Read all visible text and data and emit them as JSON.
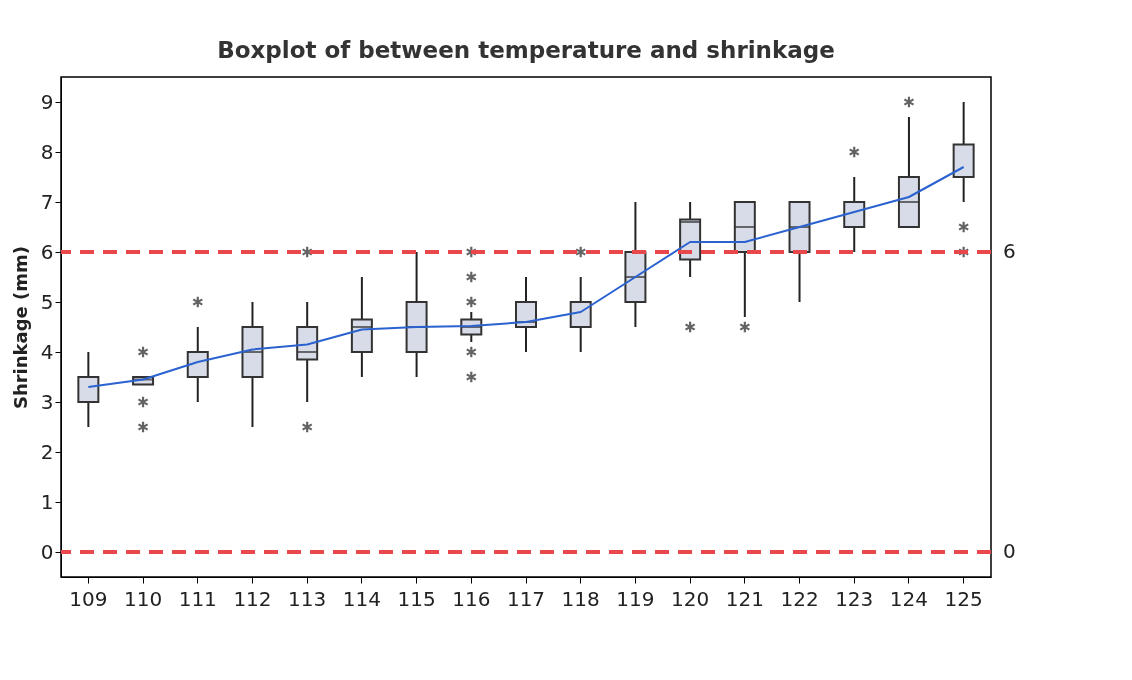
{
  "chart_data": {
    "type": "box",
    "title": "Boxplot of between temperature and shrinkage",
    "ylabel": "Shrinkage (mm)",
    "categories": [
      "109",
      "110",
      "111",
      "112",
      "113",
      "114",
      "115",
      "116",
      "117",
      "118",
      "119",
      "120",
      "121",
      "122",
      "123",
      "124",
      "125"
    ],
    "boxes": [
      {
        "low": 2.5,
        "q1": 3,
        "median": 3.5,
        "q3": 3.5,
        "high": 4
      },
      {
        "low": 3.35,
        "q1": 3.35,
        "median": 3.45,
        "q3": 3.5,
        "high": 3.5,
        "outliers": [
          4,
          3,
          2.5
        ]
      },
      {
        "low": 3,
        "q1": 3.5,
        "median": 4,
        "q3": 4,
        "high": 4.5,
        "outliers": [
          5
        ]
      },
      {
        "low": 2.5,
        "q1": 3.5,
        "median": 4,
        "q3": 4.5,
        "high": 5
      },
      {
        "low": 3,
        "q1": 3.85,
        "median": 4,
        "q3": 4.5,
        "high": 5,
        "outliers": [
          6,
          2.5
        ]
      },
      {
        "low": 3.5,
        "q1": 4,
        "median": 4.5,
        "q3": 4.65,
        "high": 5.5
      },
      {
        "low": 3.5,
        "q1": 4,
        "median": 4.5,
        "q3": 5,
        "high": 6
      },
      {
        "low": 4.2,
        "q1": 4.35,
        "median": 4.5,
        "q3": 4.65,
        "high": 4.8,
        "outliers": [
          6,
          5.5,
          5,
          4,
          3.5
        ]
      },
      {
        "low": 4,
        "q1": 4.5,
        "median": 4.6,
        "q3": 5,
        "high": 5.5
      },
      {
        "low": 4,
        "q1": 4.5,
        "median": 4.5,
        "q3": 5,
        "high": 5.5,
        "outliers": [
          6
        ]
      },
      {
        "low": 4.5,
        "q1": 5,
        "median": 5.5,
        "q3": 6,
        "high": 7
      },
      {
        "low": 5.5,
        "q1": 5.85,
        "median": 6.6,
        "q3": 6.65,
        "high": 7,
        "outliers": [
          4.5
        ]
      },
      {
        "low": 4.7,
        "q1": 6,
        "median": 6.5,
        "q3": 7,
        "high": 7,
        "outliers": [
          4.5
        ]
      },
      {
        "low": 5,
        "q1": 6,
        "median": 6.5,
        "q3": 7,
        "high": 7
      },
      {
        "low": 6,
        "q1": 6.5,
        "median": 6.5,
        "q3": 7,
        "high": 7.5,
        "outliers": [
          8
        ]
      },
      {
        "low": 6.5,
        "q1": 6.5,
        "median": 7,
        "q3": 7.5,
        "high": 8.7,
        "outliers": [
          9
        ]
      },
      {
        "low": 7,
        "q1": 7.5,
        "median": 7.5,
        "q3": 8.15,
        "high": 9,
        "outliers": [
          6.5,
          6
        ]
      }
    ],
    "series": [
      {
        "type": "line",
        "color": "#2a62d0",
        "values": [
          3.3,
          3.45,
          3.8,
          4.05,
          4.15,
          4.45,
          4.5,
          4.52,
          4.6,
          4.8,
          5.5,
          6.2,
          6.2,
          6.5,
          6.8,
          7.1,
          7.7
        ]
      }
    ],
    "ylim": [
      -0.5,
      9.5
    ],
    "yticks": [
      0,
      1,
      2,
      3,
      4,
      5,
      6,
      7,
      8,
      9
    ],
    "grid": false,
    "ref_lines": [
      {
        "axis": "y",
        "value": 6,
        "label": "6",
        "color": "#e8474c",
        "line_style": "dashed"
      },
      {
        "axis": "y",
        "value": 0,
        "label": "0",
        "color": "#e8474c",
        "line_style": "dashed"
      }
    ]
  }
}
